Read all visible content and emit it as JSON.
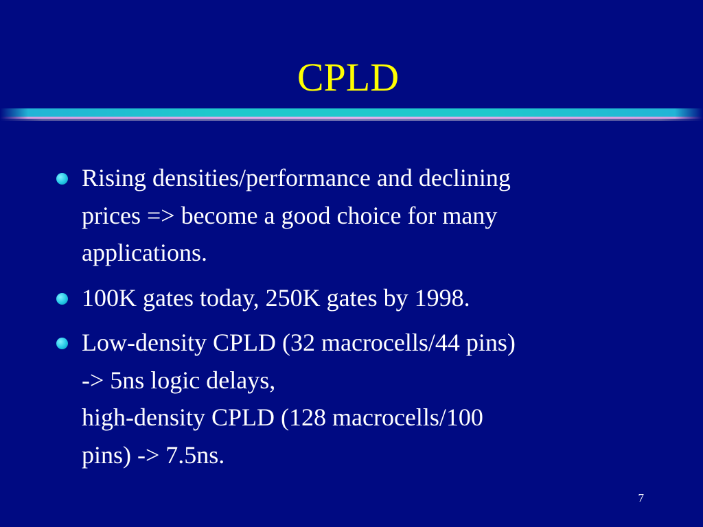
{
  "slide": {
    "title": "CPLD",
    "page_number": "7",
    "bullets": [
      {
        "lines": [
          "Rising densities/performance and declining",
          "prices => become a good choice for many",
          "applications."
        ]
      },
      {
        "lines": [
          "100K gates today, 250K gates by 1998."
        ]
      },
      {
        "lines": [
          "Low-density CPLD (32 macrocells/44 pins)",
          "-> 5ns logic delays,",
          "high-density CPLD (128 macrocells/100",
          "pins) -> 7.5ns."
        ]
      }
    ]
  },
  "colors": {
    "background": "#000a82",
    "title": "#ffff00",
    "text": "#ffffff",
    "bullet": "#23c8e6"
  }
}
